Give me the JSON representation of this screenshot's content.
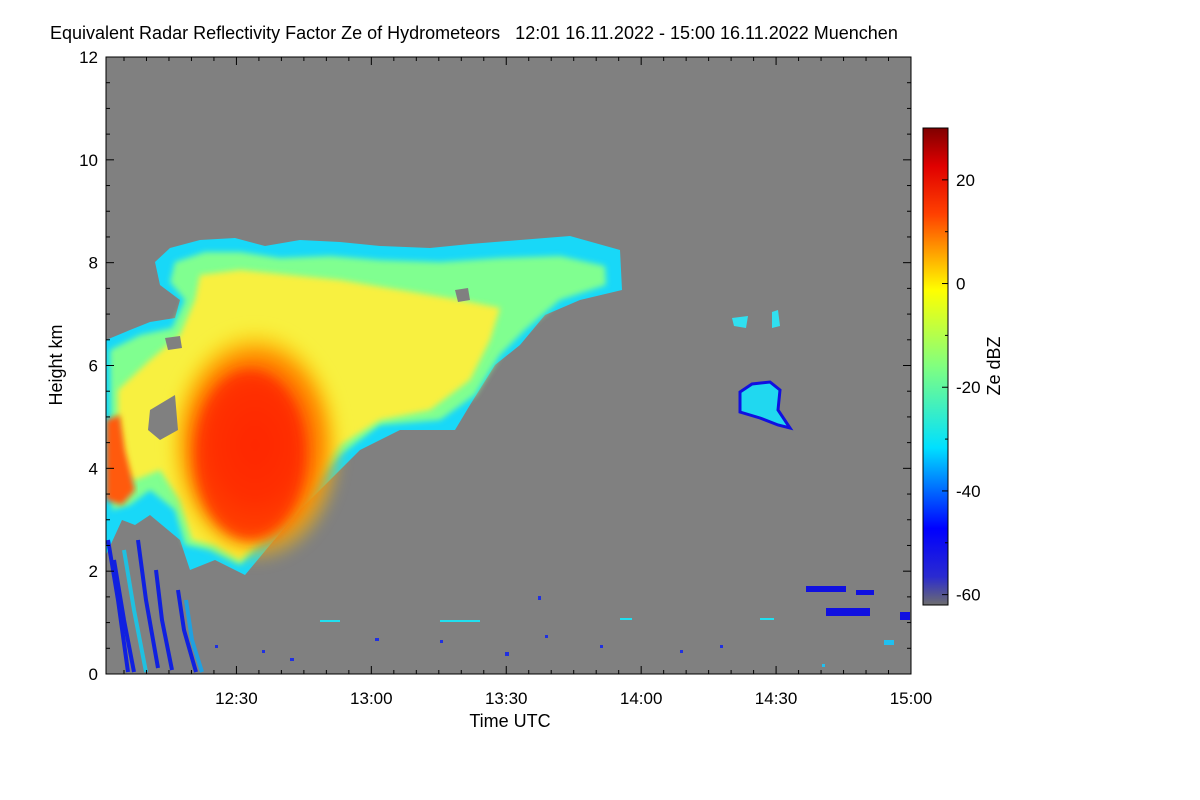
{
  "chart_data": {
    "type": "heatmap",
    "title": "Equivalent Radar Reflectivity Factor Ze of Hydrometeors   12:01 16.11.2022 - 15:00 16.11.2022 Muenchen",
    "xlabel": "Time UTC",
    "ylabel": "Height km",
    "xlim": [
      "12:01",
      "15:00"
    ],
    "ylim": [
      0,
      12
    ],
    "x_ticks": [
      "12:30",
      "13:00",
      "13:30",
      "14:00",
      "14:30",
      "15:00"
    ],
    "y_ticks": [
      0,
      2,
      4,
      6,
      8,
      10,
      12
    ],
    "background_color": "#808080",
    "colorbar": {
      "label": "Ze dBZ",
      "range": [
        -62,
        30
      ],
      "ticks": [
        20,
        0,
        -20,
        -40,
        -60
      ],
      "colormap": "jet"
    },
    "features": [
      {
        "time": [
          "12:01",
          "13:55"
        ],
        "height_km": [
          1.9,
          8.5
        ],
        "ze_dbz_range": [
          -40,
          22
        ],
        "note": "main precipitation region"
      },
      {
        "time": [
          "12:25",
          "12:45"
        ],
        "height_km": [
          2.0,
          6.0
        ],
        "ze_dbz_range": [
          10,
          22
        ],
        "note": "core maximum"
      },
      {
        "time": [
          "12:01",
          "12:22"
        ],
        "height_km": [
          0.0,
          2.8
        ],
        "ze_dbz_range": [
          -45,
          -25
        ],
        "note": "fall streaks"
      },
      {
        "time": [
          "14:20",
          "14:32"
        ],
        "height_km": [
          4.8,
          5.8
        ],
        "ze_dbz_range": [
          -45,
          -15
        ],
        "note": "isolated cloud"
      },
      {
        "time": [
          "14:20",
          "14:31"
        ],
        "height_km": [
          6.8,
          7.2
        ],
        "ze_dbz_range": [
          -30,
          -20
        ],
        "note": "isolated cloud"
      },
      {
        "time": [
          "14:35",
          "15:00"
        ],
        "height_km": [
          0.5,
          2.0
        ],
        "ze_dbz_range": [
          -45,
          -25
        ],
        "note": "low echoes"
      }
    ]
  }
}
